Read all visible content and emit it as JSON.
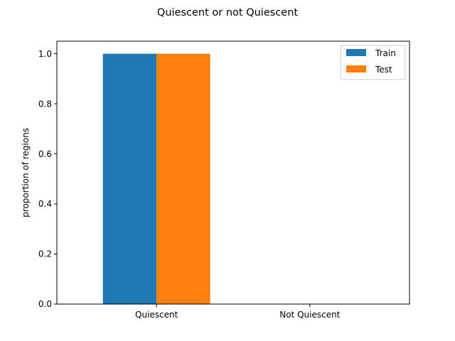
{
  "chart_data": {
    "type": "bar",
    "title": "Quiescent or not Quiescent",
    "xlabel": "",
    "ylabel": "proportion of regions",
    "categories": [
      "Quiescent",
      "Not Quiescent"
    ],
    "series": [
      {
        "name": "Train",
        "values": [
          1.0,
          0.0
        ],
        "color": "#1f77b4"
      },
      {
        "name": "Test",
        "values": [
          1.0,
          0.0
        ],
        "color": "#ff7f0e"
      }
    ],
    "ylim": [
      0,
      1.05
    ],
    "yticks": [
      "0.0",
      "0.2",
      "0.4",
      "0.6",
      "0.8",
      "1.0"
    ],
    "grid": false,
    "legend": "top-right"
  }
}
